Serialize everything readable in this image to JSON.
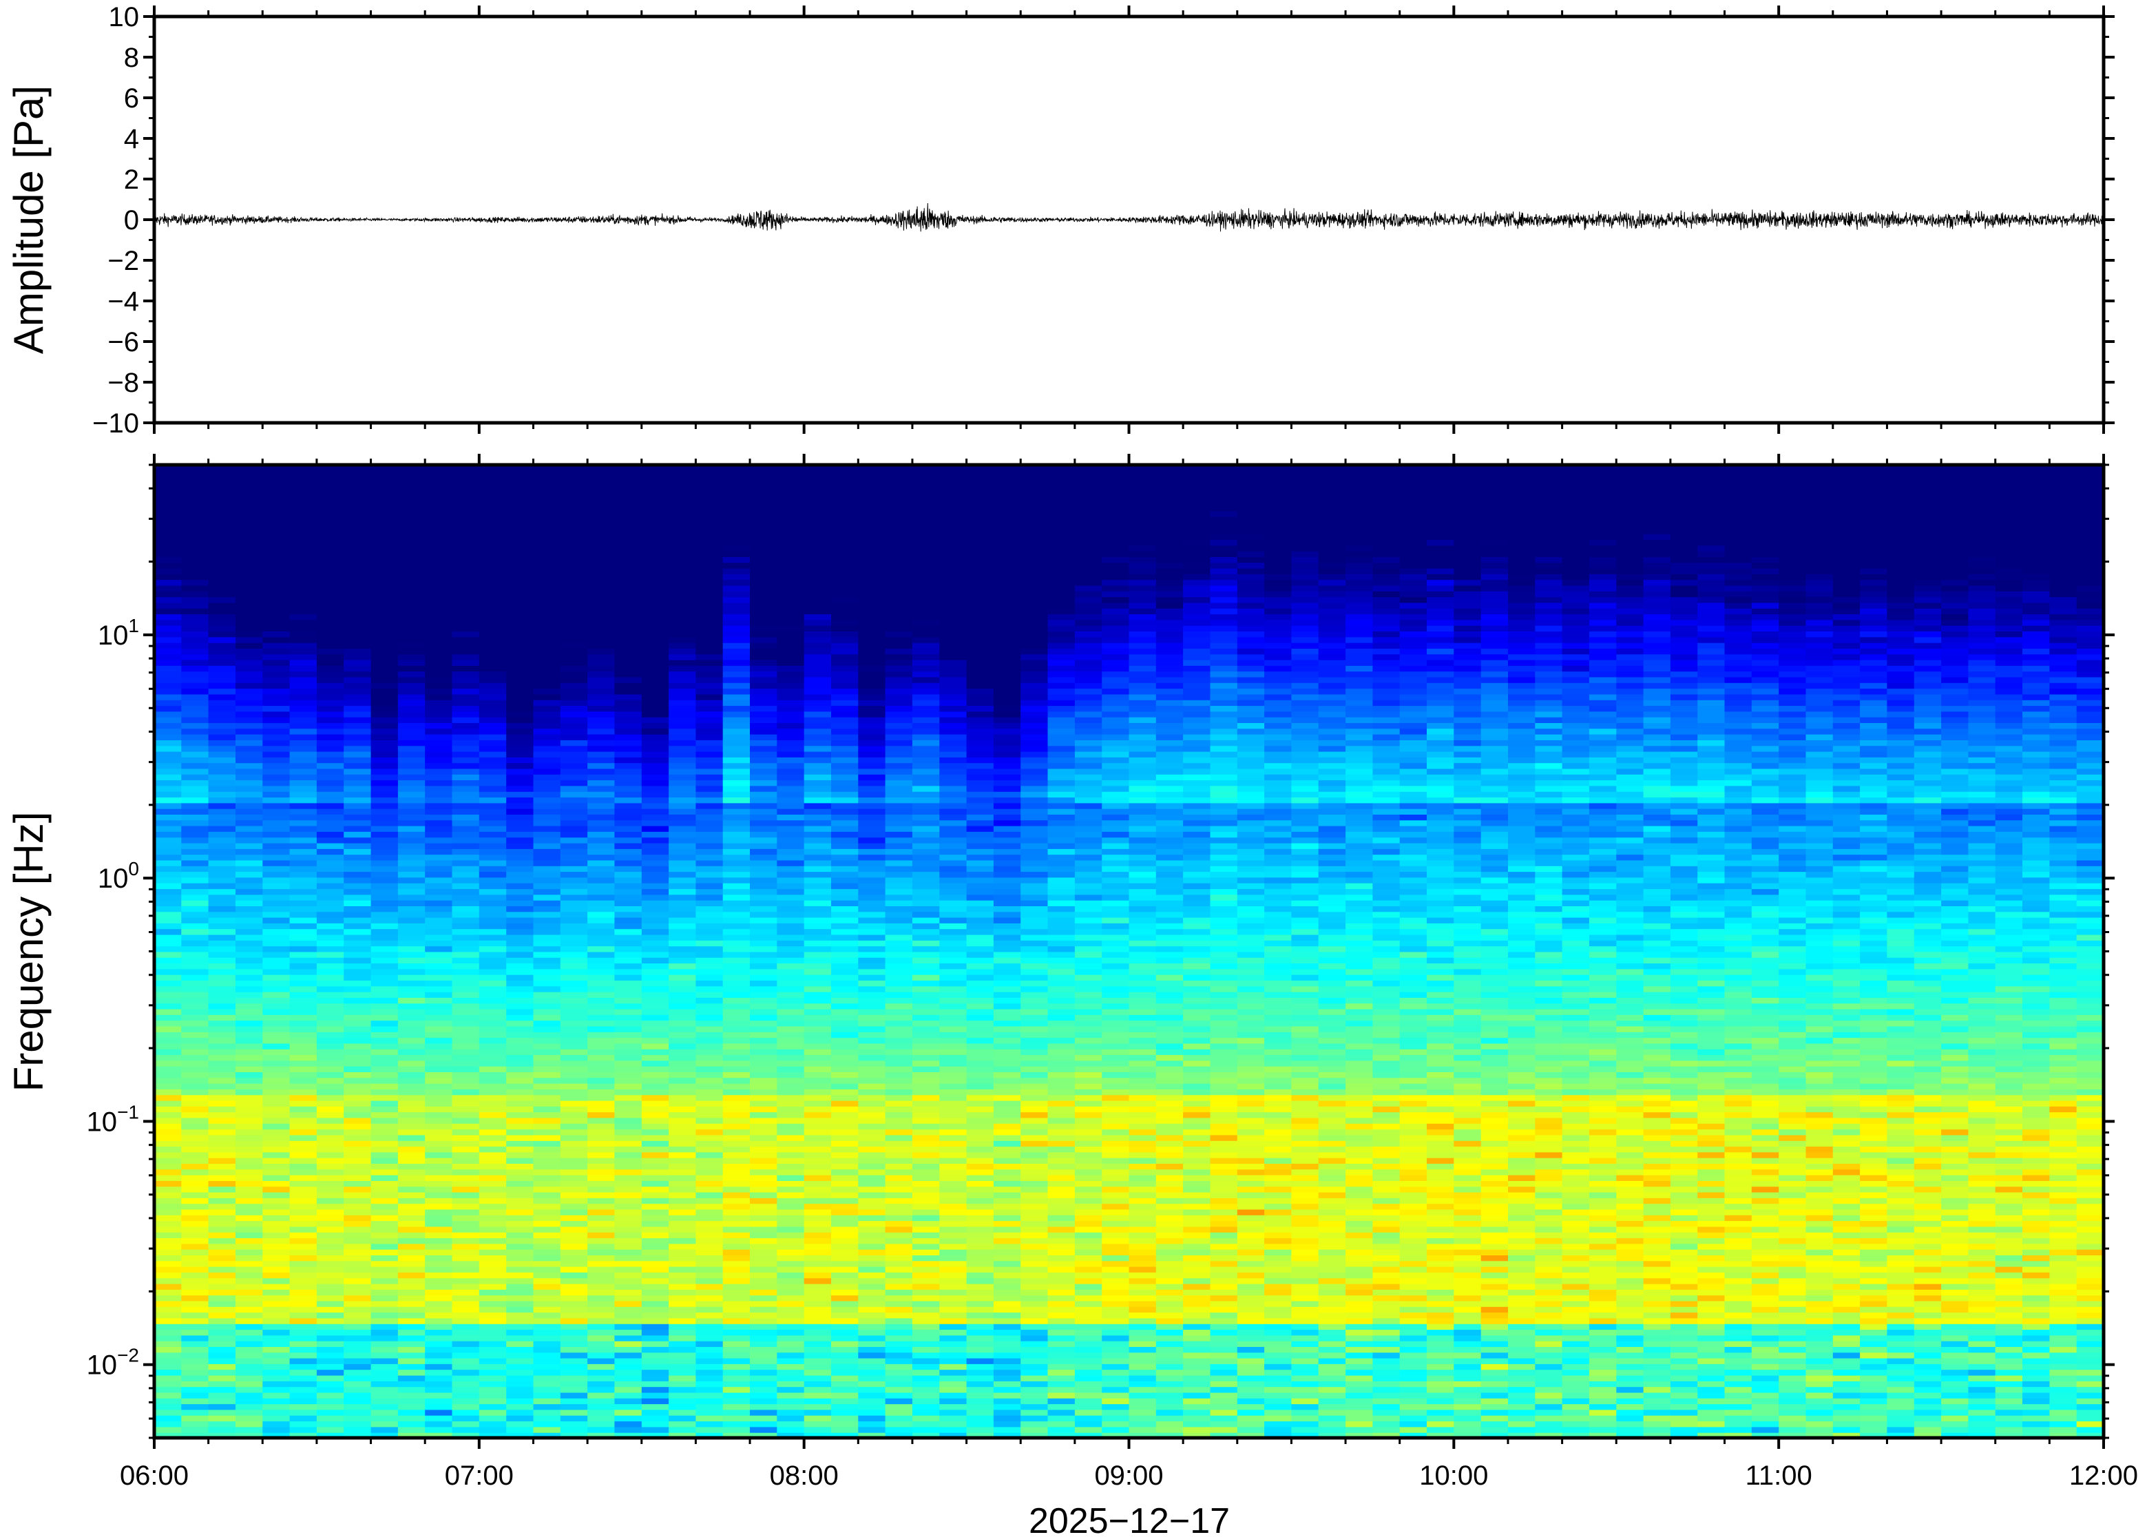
{
  "chart_data": [
    {
      "type": "line",
      "ylabel": "Amplitude [Pa]",
      "ylim": [
        -10,
        10
      ],
      "yticks": [
        -10,
        -8,
        -6,
        -4,
        -2,
        0,
        2,
        4,
        6,
        8,
        10
      ],
      "ytick_labels": [
        "−10",
        "−8",
        "−6",
        "−4",
        "−2",
        "0",
        "2",
        "4",
        "6",
        "8",
        "10"
      ],
      "xlim": [
        "06:00",
        "12:00"
      ],
      "series": [
        {
          "envelope_time": [
            "06:00",
            "06:15",
            "06:30",
            "06:45",
            "07:00",
            "07:15",
            "07:30",
            "07:45",
            "07:52",
            "07:55",
            "08:00",
            "08:15",
            "08:22",
            "08:30",
            "08:45",
            "09:00",
            "09:15",
            "09:20",
            "09:30",
            "09:45",
            "10:00",
            "10:15",
            "10:30",
            "10:45",
            "11:00",
            "11:15",
            "11:30",
            "11:45",
            "12:00"
          ],
          "envelope_amplitude": [
            0.6,
            0.45,
            0.2,
            0.12,
            0.25,
            0.3,
            0.55,
            0.15,
            1.3,
            0.9,
            0.2,
            0.45,
            1.7,
            0.4,
            0.2,
            0.25,
            0.7,
            1.0,
            0.8,
            0.8,
            0.7,
            0.75,
            0.8,
            0.8,
            0.85,
            0.8,
            0.75,
            0.7,
            0.6
          ]
        }
      ]
    },
    {
      "type": "heatmap",
      "ylabel": "Frequency [Hz]",
      "yscale": "log",
      "ylim": [
        0.005,
        50
      ],
      "yticks": [
        0.01,
        0.1,
        1,
        10
      ],
      "ytick_labels": [
        {
          "base": "10",
          "exp": "−2"
        },
        {
          "base": "10",
          "exp": "−1"
        },
        {
          "base": "10",
          "exp": "0"
        },
        {
          "base": "10",
          "exp": "1"
        }
      ],
      "xlim": [
        "06:00",
        "12:00"
      ],
      "xticks": [
        "06:00",
        "07:00",
        "08:00",
        "09:00",
        "10:00",
        "11:00",
        "12:00"
      ],
      "xlabel": "2025−12−17",
      "colormap": [
        "#00007f",
        "#0000ff",
        "#007fff",
        "#00ffff",
        "#7fff7f",
        "#ffff00",
        "#ff7f00",
        "#ff0000"
      ],
      "time_columns_60s": [
        0.55,
        0.5,
        0.45,
        0.4,
        0.35,
        0.4,
        0.3,
        0.35,
        0.1,
        0.3,
        0.2,
        0.3,
        0.25,
        0.05,
        0.2,
        0.25,
        0.3,
        0.2,
        0.1,
        0.35,
        0.25,
        0.6,
        0.35,
        0.3,
        0.45,
        0.4,
        0.2,
        0.35,
        0.4,
        0.3,
        0.2,
        0.1,
        0.3,
        0.45,
        0.5,
        0.55,
        0.6,
        0.55,
        0.6,
        0.65,
        0.6,
        0.55,
        0.6,
        0.55,
        0.6,
        0.55,
        0.55,
        0.6,
        0.55,
        0.6,
        0.55,
        0.6,
        0.55,
        0.6,
        0.55,
        0.6,
        0.55,
        0.6,
        0.55,
        0.55,
        0.5,
        0.55,
        0.5,
        0.55,
        0.5,
        0.55,
        0.5,
        0.55,
        0.5,
        0.55,
        0.5,
        0.5
      ]
    }
  ]
}
